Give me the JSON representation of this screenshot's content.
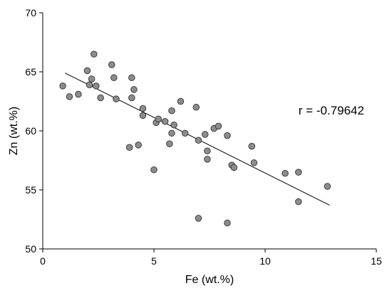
{
  "chart_data": {
    "type": "scatter",
    "xlabel": "Fe (wt.%)",
    "ylabel": "Zn (wt.%)",
    "xlim": [
      0,
      15
    ],
    "ylim": [
      50,
      70
    ],
    "xticks": [
      0,
      5,
      10,
      15
    ],
    "yticks": [
      50,
      55,
      60,
      65,
      70
    ],
    "grid": false,
    "annotation": "r = -0.79642",
    "trendline": {
      "x": [
        1.0,
        12.9
      ],
      "y": [
        64.9,
        53.7
      ]
    },
    "series": [
      {
        "point_color": "#8c8c8c",
        "line_color": "#000000",
        "points": [
          [
            0.9,
            63.8
          ],
          [
            1.2,
            62.9
          ],
          [
            1.6,
            63.1
          ],
          [
            2.0,
            65.1
          ],
          [
            2.1,
            63.9
          ],
          [
            2.2,
            64.4
          ],
          [
            2.3,
            66.5
          ],
          [
            2.4,
            63.8
          ],
          [
            2.6,
            62.8
          ],
          [
            3.1,
            65.6
          ],
          [
            3.2,
            64.5
          ],
          [
            3.3,
            62.7
          ],
          [
            3.9,
            58.6
          ],
          [
            4.0,
            64.5
          ],
          [
            4.0,
            62.8
          ],
          [
            4.1,
            63.5
          ],
          [
            4.3,
            58.8
          ],
          [
            4.5,
            61.9
          ],
          [
            4.5,
            61.3
          ],
          [
            5.0,
            56.7
          ],
          [
            5.1,
            60.7
          ],
          [
            5.2,
            61.0
          ],
          [
            5.5,
            60.8
          ],
          [
            5.7,
            58.9
          ],
          [
            5.8,
            59.8
          ],
          [
            5.8,
            61.7
          ],
          [
            5.9,
            60.5
          ],
          [
            6.2,
            62.5
          ],
          [
            6.4,
            59.8
          ],
          [
            6.9,
            62.0
          ],
          [
            7.0,
            59.2
          ],
          [
            7.0,
            52.6
          ],
          [
            7.3,
            59.7
          ],
          [
            7.4,
            57.6
          ],
          [
            7.4,
            58.3
          ],
          [
            7.7,
            60.2
          ],
          [
            7.9,
            60.4
          ],
          [
            8.3,
            59.6
          ],
          [
            8.3,
            52.2
          ],
          [
            8.5,
            57.1
          ],
          [
            8.6,
            56.9
          ],
          [
            9.4,
            58.7
          ],
          [
            9.5,
            57.3
          ],
          [
            10.9,
            56.4
          ],
          [
            11.5,
            56.5
          ],
          [
            11.5,
            54.0
          ],
          [
            12.8,
            55.3
          ]
        ]
      }
    ]
  }
}
